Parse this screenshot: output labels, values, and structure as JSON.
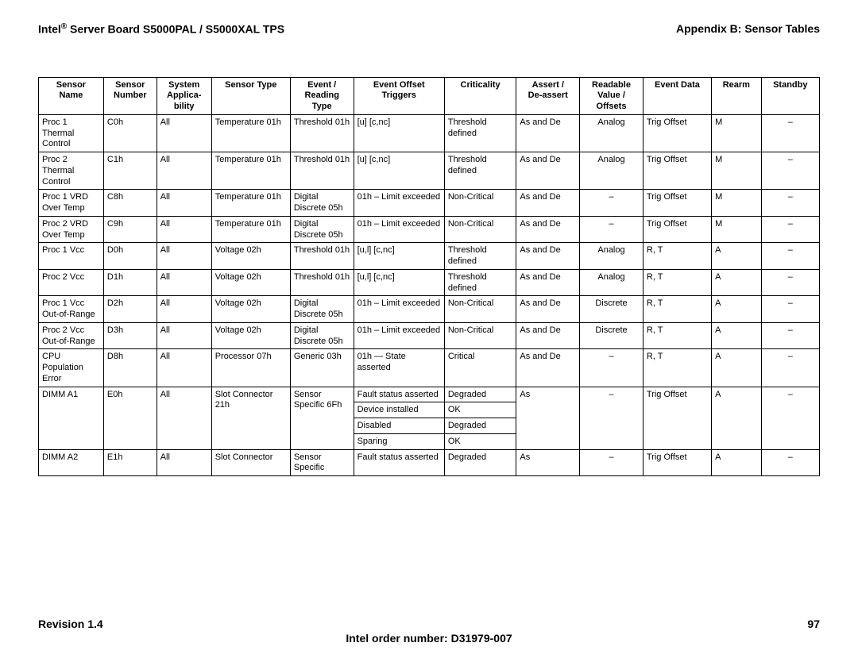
{
  "header": {
    "left_prefix": "Intel",
    "left_sup": "®",
    "left_rest": " Server Board S5000PAL / S5000XAL TPS",
    "right": "Appendix B: Sensor Tables"
  },
  "table": {
    "columns": [
      "Sensor Name",
      "Sensor Number",
      "System Applica-bility",
      "Sensor Type",
      "Event / Reading Type",
      "Event Offset Triggers",
      "Criticality",
      "Assert / De-assert",
      "Readable Value / Offsets",
      "Event Data",
      "Rearm",
      "Standby"
    ],
    "rows": [
      {
        "name": "Proc 1 Thermal Control",
        "num": "C0h",
        "app": "All",
        "type": "Temperature 01h",
        "ert": "Threshold 01h",
        "off": "[u] [c,nc]",
        "crit": "Threshold defined",
        "ad": "As and De",
        "read": "Analog",
        "ed": "Trig Offset",
        "rearm": "M",
        "stdby": "–"
      },
      {
        "name": "Proc 2 Thermal Control",
        "num": "C1h",
        "app": "All",
        "type": "Temperature 01h",
        "ert": "Threshold 01h",
        "off": "[u] [c,nc]",
        "crit": "Threshold defined",
        "ad": "As and De",
        "read": "Analog",
        "ed": "Trig Offset",
        "rearm": "M",
        "stdby": "–"
      },
      {
        "name": "Proc 1 VRD Over Temp",
        "num": "C8h",
        "app": "All",
        "type": "Temperature 01h",
        "ert": "Digital Discrete 05h",
        "off": "01h – Limit exceeded",
        "crit": "Non-Critical",
        "ad": "As and De",
        "read": "–",
        "ed": "Trig Offset",
        "rearm": "M",
        "stdby": "–"
      },
      {
        "name": "Proc 2 VRD Over Temp",
        "num": "C9h",
        "app": "All",
        "type": "Temperature 01h",
        "ert": "Digital Discrete 05h",
        "off": "01h – Limit exceeded",
        "crit": "Non-Critical",
        "ad": "As and De",
        "read": "–",
        "ed": "Trig Offset",
        "rearm": "M",
        "stdby": "–"
      },
      {
        "name": "Proc 1 Vcc",
        "num": "D0h",
        "app": "All",
        "type": "Voltage 02h",
        "ert": "Threshold 01h",
        "off": "[u,l] [c,nc]",
        "crit": "Threshold defined",
        "ad": "As and De",
        "read": "Analog",
        "ed": "R, T",
        "rearm": "A",
        "stdby": "–"
      },
      {
        "name": "Proc 2 Vcc",
        "num": "D1h",
        "app": "All",
        "type": "Voltage 02h",
        "ert": "Threshold 01h",
        "off": "[u,l] [c,nc]",
        "crit": "Threshold defined",
        "ad": "As and De",
        "read": "Analog",
        "ed": "R, T",
        "rearm": "A",
        "stdby": "–"
      },
      {
        "name": "Proc 1 Vcc Out-of-Range",
        "num": "D2h",
        "app": "All",
        "type": "Voltage 02h",
        "ert": "Digital Discrete 05h",
        "off": "01h – Limit exceeded",
        "crit": "Non-Critical",
        "ad": "As and De",
        "read": "Discrete",
        "ed": "R, T",
        "rearm": "A",
        "stdby": "–"
      },
      {
        "name": "Proc 2 Vcc Out-of-Range",
        "num": "D3h",
        "app": "All",
        "type": "Voltage 02h",
        "ert": "Digital Discrete 05h",
        "off": "01h – Limit exceeded",
        "crit": "Non-Critical",
        "ad": "As and De",
        "read": "Discrete",
        "ed": "R, T",
        "rearm": "A",
        "stdby": "–"
      },
      {
        "name": "CPU Population Error",
        "num": "D8h",
        "app": "All",
        "type": "Processor 07h",
        "ert": "Generic 03h",
        "off": "01h — State asserted",
        "crit": "Critical",
        "ad": "As and De",
        "read": "–",
        "ed": "R, T",
        "rearm": "A",
        "stdby": "–"
      }
    ],
    "dimm_a1": {
      "name": "DIMM A1",
      "num": "E0h",
      "app": "All",
      "type": "Slot Connector 21h",
      "ert": "Sensor Specific 6Fh",
      "sub": [
        {
          "off": "Fault status asserted",
          "crit": "Degraded"
        },
        {
          "off": "Device installed",
          "crit": "OK"
        },
        {
          "off": "Disabled",
          "crit": "Degraded"
        },
        {
          "off": "Sparing",
          "crit": "OK"
        }
      ],
      "ad": "As",
      "read": "–",
      "ed": "Trig Offset",
      "rearm": "A",
      "stdby": "–"
    },
    "dimm_a2": {
      "name": "DIMM A2",
      "num": "E1h",
      "app": "All",
      "type": "Slot Connector",
      "ert": "Sensor Specific",
      "off": "Fault status asserted",
      "crit": "Degraded",
      "ad": "As",
      "read": "–",
      "ed": "Trig Offset",
      "rearm": "A",
      "stdby": "–"
    }
  },
  "footer": {
    "revision": "Revision 1.4",
    "page": "97",
    "order": "Intel order number: D31979-007"
  }
}
